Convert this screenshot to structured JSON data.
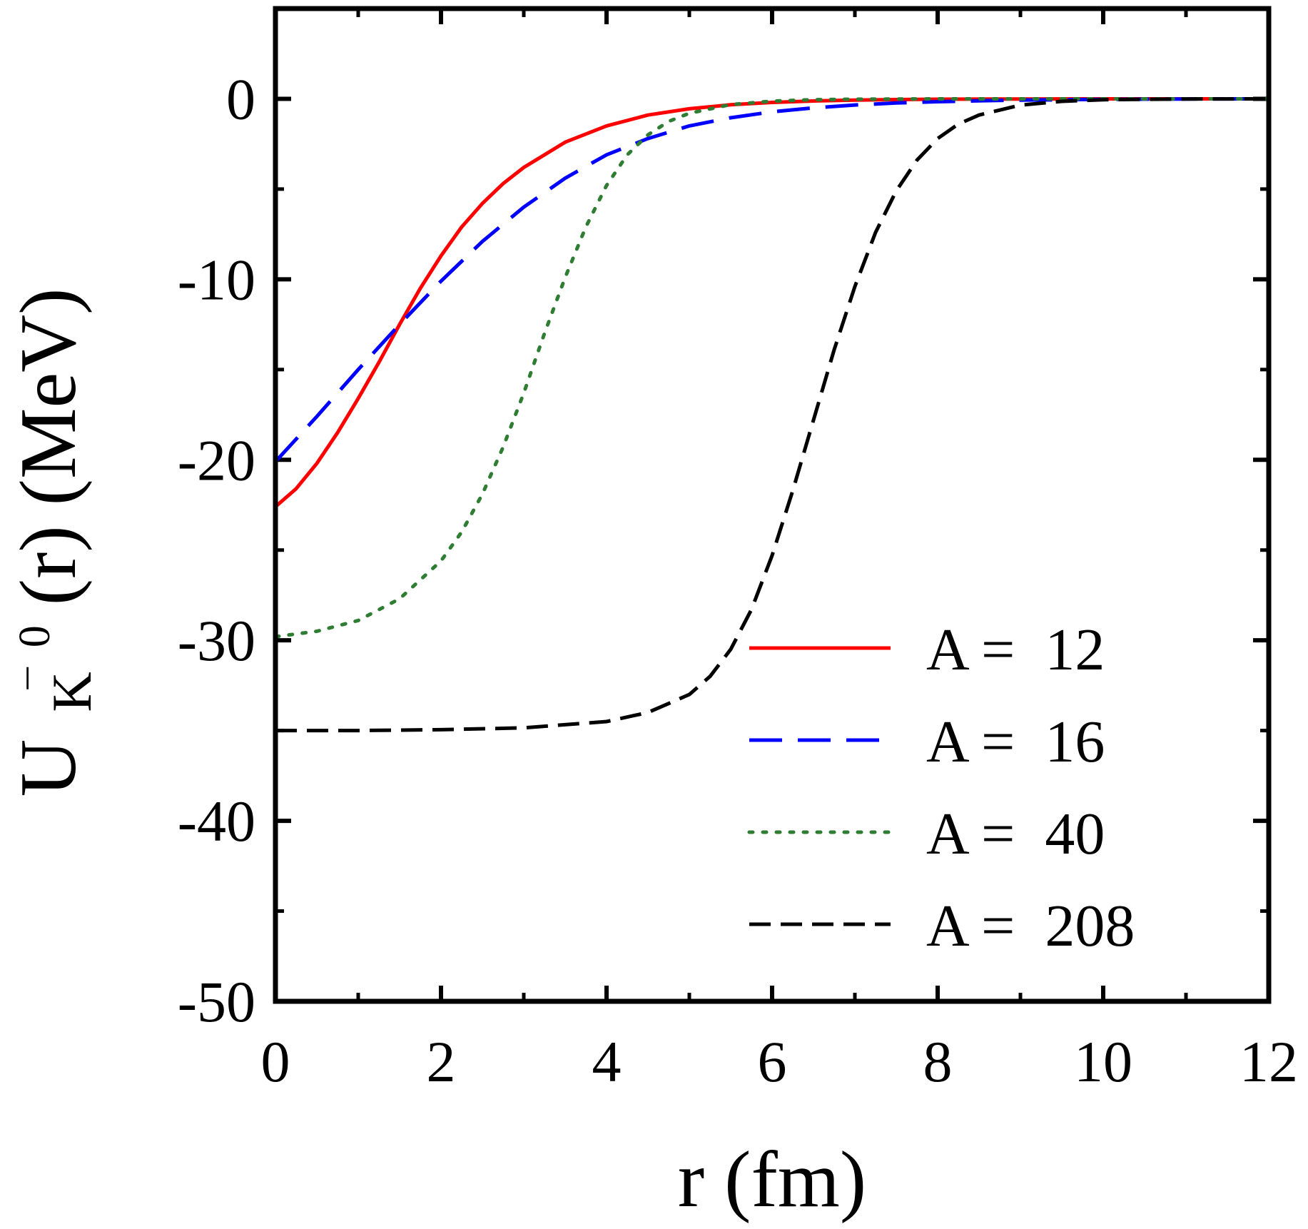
{
  "chart_data": {
    "type": "line",
    "xlabel": "r (fm)",
    "ylabel": {
      "main": "U",
      "subscript_base": "K",
      "subscript_accent": "¯",
      "superscript": "0",
      "suffix": "(r) (MeV)"
    },
    "xlim": [
      0,
      12
    ],
    "ylim": [
      -50,
      5
    ],
    "xticks": [
      0,
      2,
      4,
      6,
      8,
      10,
      12
    ],
    "xtick_labels": [
      "0",
      "2",
      "4",
      "6",
      "8",
      "10",
      "12"
    ],
    "yticks": [
      0,
      -10,
      -20,
      -30,
      -40,
      -50
    ],
    "ytick_labels": [
      "0",
      "-10",
      "-20",
      "-30",
      "-40",
      "-50"
    ],
    "grid": false,
    "legend_position": "bottom-right",
    "series": [
      {
        "name": "A =  12",
        "color": "#ff0000",
        "style": "solid",
        "x": [
          0,
          0.25,
          0.5,
          0.75,
          1.0,
          1.25,
          1.5,
          1.75,
          2.0,
          2.25,
          2.5,
          2.75,
          3.0,
          3.5,
          4.0,
          4.5,
          5.0,
          5.5,
          6.0,
          6.5,
          7.0,
          7.5,
          8.0,
          9.0,
          10.0,
          11.0,
          12.0
        ],
        "y": [
          -22.6,
          -21.6,
          -20.2,
          -18.5,
          -16.6,
          -14.6,
          -12.5,
          -10.5,
          -8.7,
          -7.1,
          -5.8,
          -4.7,
          -3.8,
          -2.4,
          -1.5,
          -0.9,
          -0.55,
          -0.33,
          -0.2,
          -0.12,
          -0.07,
          -0.04,
          -0.02,
          -0.01,
          0,
          0,
          0
        ]
      },
      {
        "name": "A =  16",
        "color": "#0000ff",
        "style": "longdash",
        "x": [
          0,
          0.5,
          1.0,
          1.5,
          2.0,
          2.5,
          3.0,
          3.5,
          4.0,
          4.5,
          5.0,
          5.5,
          6.0,
          6.5,
          7.0,
          7.5,
          8.0,
          8.5,
          9.0,
          9.5,
          10.0,
          11.0,
          12.0
        ],
        "y": [
          -20.1,
          -17.6,
          -15.0,
          -12.5,
          -10.1,
          -7.9,
          -6.0,
          -4.4,
          -3.1,
          -2.2,
          -1.5,
          -1.05,
          -0.72,
          -0.5,
          -0.34,
          -0.23,
          -0.16,
          -0.11,
          -0.07,
          -0.05,
          -0.03,
          -0.01,
          0
        ]
      },
      {
        "name": "A =  40",
        "color": "#2e7d32",
        "style": "dotted",
        "x": [
          0,
          0.5,
          1.0,
          1.5,
          2.0,
          2.25,
          2.5,
          2.75,
          3.0,
          3.25,
          3.5,
          3.75,
          4.0,
          4.25,
          4.5,
          4.75,
          5.0,
          5.5,
          6.0,
          6.5,
          7.0,
          8.0,
          9.0,
          10.0,
          12.0
        ],
        "y": [
          -29.8,
          -29.5,
          -28.9,
          -27.7,
          -25.6,
          -24.0,
          -21.9,
          -19.3,
          -16.3,
          -13.0,
          -9.9,
          -7.1,
          -4.8,
          -3.1,
          -2.0,
          -1.25,
          -0.8,
          -0.32,
          -0.13,
          -0.05,
          -0.02,
          0,
          0,
          0,
          0
        ]
      },
      {
        "name": "A =  208",
        "color": "#000000",
        "style": "dashed",
        "x": [
          0,
          1.0,
          2.0,
          3.0,
          4.0,
          4.5,
          5.0,
          5.25,
          5.5,
          5.75,
          6.0,
          6.25,
          6.5,
          6.75,
          7.0,
          7.25,
          7.5,
          7.75,
          8.0,
          8.25,
          8.5,
          9.0,
          9.5,
          10.0,
          11.0,
          12.0
        ],
        "y": [
          -35.0,
          -35.0,
          -34.95,
          -34.85,
          -34.5,
          -34.0,
          -33.0,
          -32.0,
          -30.5,
          -28.3,
          -25.3,
          -21.7,
          -17.8,
          -13.9,
          -10.4,
          -7.4,
          -5.1,
          -3.4,
          -2.2,
          -1.4,
          -0.9,
          -0.35,
          -0.14,
          -0.05,
          -0.01,
          0
        ]
      }
    ]
  }
}
